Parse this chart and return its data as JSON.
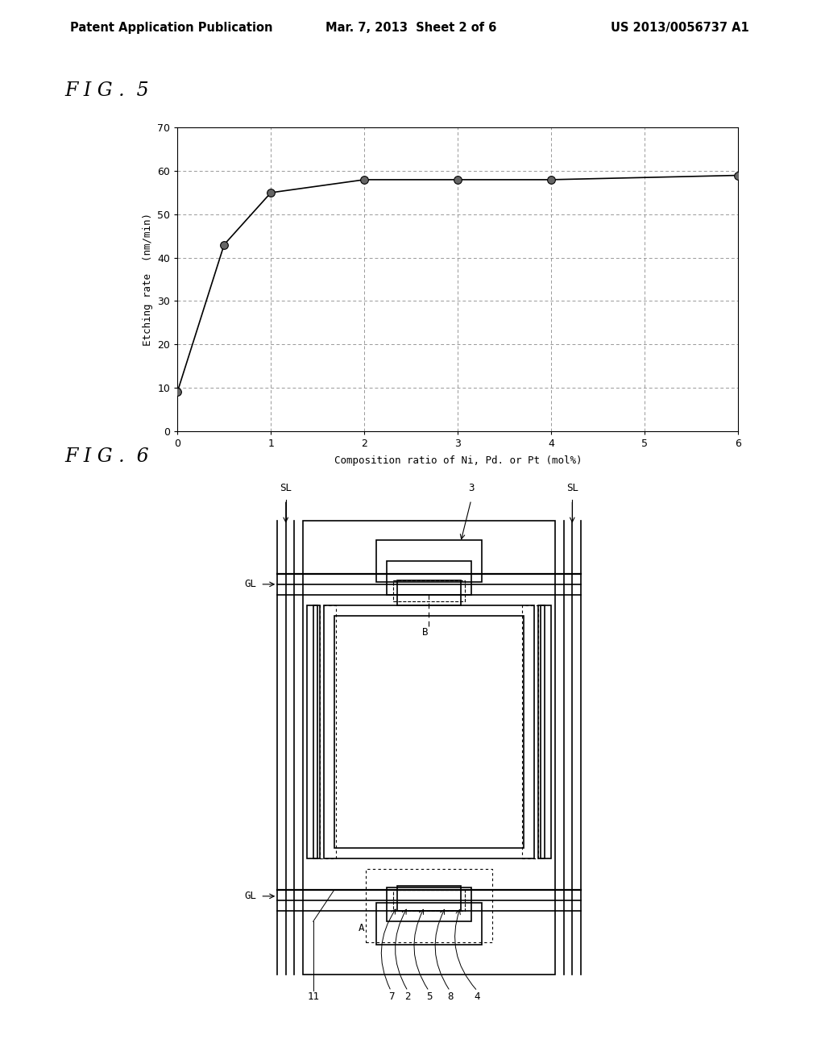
{
  "header_left": "Patent Application Publication",
  "header_mid": "Mar. 7, 2013  Sheet 2 of 6",
  "header_right": "US 2013/0056737 A1",
  "fig5_title": "F I G .  5",
  "fig5_xlabel": "Composition ratio of Ni, Pd. or Pt (mol%)",
  "fig5_ylabel": "Etching rate  (nm/min)",
  "fig5_x": [
    0,
    0.5,
    1,
    2,
    3,
    4,
    6
  ],
  "fig5_y": [
    9,
    43,
    55,
    58,
    58,
    58,
    59
  ],
  "fig5_xlim": [
    0,
    6
  ],
  "fig5_ylim": [
    0,
    70
  ],
  "fig5_xticks": [
    0,
    1,
    2,
    3,
    4,
    5,
    6
  ],
  "fig5_yticks": [
    0,
    10,
    20,
    30,
    40,
    50,
    60,
    70
  ],
  "fig6_title": "F I G .  6",
  "background_color": "#ffffff",
  "line_color": "#000000",
  "grid_color": "#999999",
  "marker_color": "#444444"
}
